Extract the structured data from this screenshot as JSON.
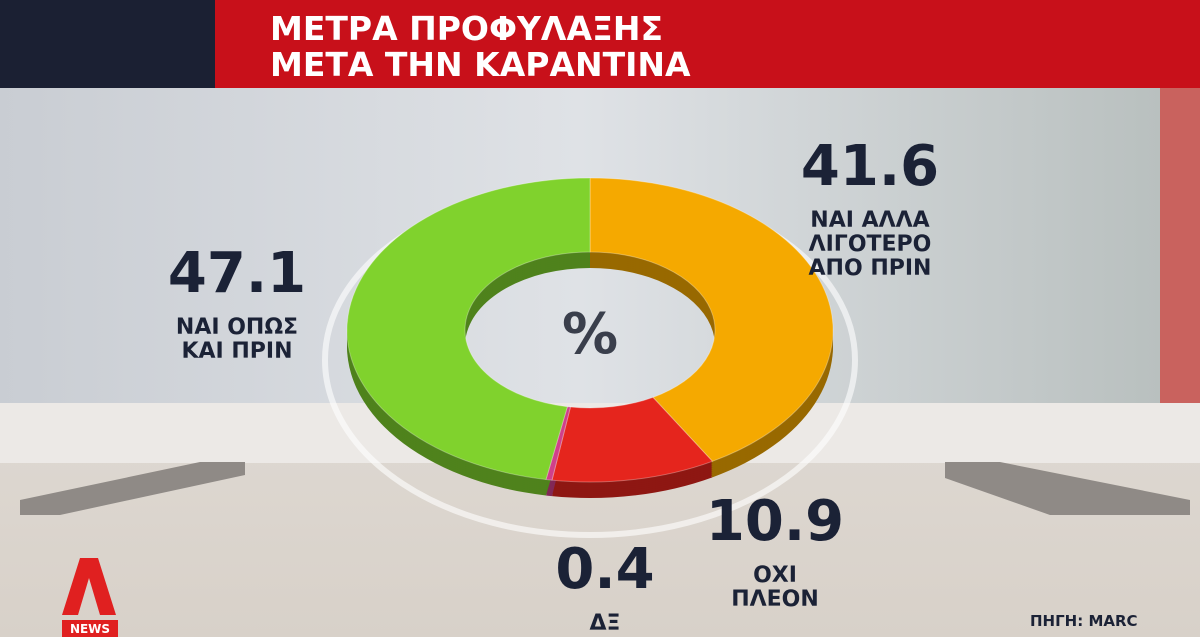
{
  "chart_data": {
    "type": "donut",
    "title": "ΜΕΤΡΑ ΠΡΟΦΥΛΑΞΗΣ",
    "subtitle": "ΜΕΤΑ ΤΗΝ ΚΑΡΑΝΤΙΝΑ",
    "center_label": "%",
    "categories": [
      [
        "ΝΑΙ ΑΛΛΑ",
        "ΛΙΓΟΤΕΡΟ",
        "ΑΠΟ ΠΡΙΝ"
      ],
      [
        "ΟΧΙ",
        "ΠΛΕΟΝ"
      ],
      [
        "ΔΞ"
      ],
      [
        "ΝΑΙ ΟΠΩΣ",
        "ΚΑΙ ΠΡΙΝ"
      ]
    ],
    "values": [
      41.6,
      10.9,
      0.4,
      47.1
    ],
    "colors": [
      "#f5a900",
      "#e5251d",
      "#d0408a",
      "#80d22d"
    ]
  },
  "source": "ΠΗΓΗ: MARC",
  "logo_text": "NEWS"
}
